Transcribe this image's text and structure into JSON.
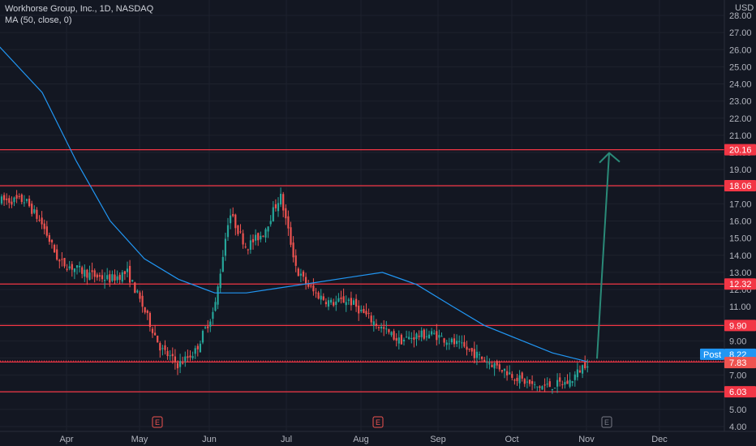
{
  "header": {
    "symbol_line": "Workhorse Group, Inc., 1D, NASDAQ",
    "indicator_line": "MA (50, close, 0)"
  },
  "currency": "USD",
  "colors": {
    "background": "#131722",
    "up": "#26a69a",
    "down": "#ef5350",
    "ma": "#2196f3",
    "level_line": "#f23645",
    "arrow": "#2a8a78",
    "grid": "#1e222d"
  },
  "chart_data": {
    "type": "candlestick",
    "y_axis": {
      "ticks": [
        "4.00",
        "5.00",
        "6.00",
        "7.00",
        "8.00",
        "9.00",
        "10.00",
        "11.00",
        "12.00",
        "13.00",
        "14.00",
        "15.00",
        "16.00",
        "17.00",
        "18.00",
        "19.00",
        "20.00",
        "21.00",
        "22.00",
        "23.00",
        "24.00",
        "25.00",
        "26.00",
        "27.00",
        "28.00"
      ],
      "range": [
        4,
        28
      ]
    },
    "x_axis": {
      "labels": [
        "Apr",
        "May",
        "Jun",
        "Jul",
        "Aug",
        "Sep",
        "Oct",
        "Nov",
        "Dec"
      ]
    },
    "earnings_markers": [
      "E",
      "E",
      "E"
    ],
    "horizontal_levels": [
      {
        "value": 20.16,
        "label": "20.16"
      },
      {
        "value": 18.06,
        "label": "18.06"
      },
      {
        "value": 12.32,
        "label": "12.32"
      },
      {
        "value": 9.9,
        "label": "9.90"
      },
      {
        "value": 7.77,
        "label": "7.77"
      },
      {
        "value": 6.03,
        "label": "6.03"
      }
    ],
    "price_tags": [
      {
        "name": "Post",
        "value": "8.22"
      },
      {
        "name": "",
        "value": "7.83"
      }
    ],
    "close_samples": [
      {
        "date": "2021-03-15",
        "close": 17.2
      },
      {
        "date": "2021-03-22",
        "close": 15.8
      },
      {
        "date": "2021-03-29",
        "close": 13.6
      },
      {
        "date": "2021-04-05",
        "close": 13.2
      },
      {
        "date": "2021-04-12",
        "close": 12.8
      },
      {
        "date": "2021-04-19",
        "close": 12.6
      },
      {
        "date": "2021-04-26",
        "close": 13.0
      },
      {
        "date": "2021-05-03",
        "close": 10.8
      },
      {
        "date": "2021-05-10",
        "close": 8.5
      },
      {
        "date": "2021-05-17",
        "close": 7.6
      },
      {
        "date": "2021-05-24",
        "close": 8.4
      },
      {
        "date": "2021-06-01",
        "close": 10.9
      },
      {
        "date": "2021-06-07",
        "close": 16.5
      },
      {
        "date": "2021-06-14",
        "close": 14.5
      },
      {
        "date": "2021-06-21",
        "close": 15.3
      },
      {
        "date": "2021-06-28",
        "close": 17.5
      },
      {
        "date": "2021-07-05",
        "close": 13.0
      },
      {
        "date": "2021-07-12",
        "close": 11.8
      },
      {
        "date": "2021-07-19",
        "close": 11.2
      },
      {
        "date": "2021-07-26",
        "close": 11.4
      },
      {
        "date": "2021-08-02",
        "close": 10.5
      },
      {
        "date": "2021-08-09",
        "close": 9.7
      },
      {
        "date": "2021-08-16",
        "close": 9.0
      },
      {
        "date": "2021-08-23",
        "close": 9.3
      },
      {
        "date": "2021-08-30",
        "close": 9.4
      },
      {
        "date": "2021-09-07",
        "close": 8.9
      },
      {
        "date": "2021-09-13",
        "close": 8.5
      },
      {
        "date": "2021-09-20",
        "close": 7.9
      },
      {
        "date": "2021-09-27",
        "close": 7.4
      },
      {
        "date": "2021-10-04",
        "close": 6.8
      },
      {
        "date": "2021-10-11",
        "close": 6.3
      },
      {
        "date": "2021-10-18",
        "close": 6.4
      },
      {
        "date": "2021-10-25",
        "close": 6.6
      },
      {
        "date": "2021-11-01",
        "close": 7.77
      }
    ],
    "ma_samples": [
      {
        "date": "2021-03-01",
        "value": 26.7
      },
      {
        "date": "2021-03-22",
        "value": 23.5
      },
      {
        "date": "2021-04-05",
        "value": 19.5
      },
      {
        "date": "2021-04-19",
        "value": 16.0
      },
      {
        "date": "2021-05-03",
        "value": 13.8
      },
      {
        "date": "2021-05-17",
        "value": 12.6
      },
      {
        "date": "2021-06-01",
        "value": 11.8
      },
      {
        "date": "2021-06-14",
        "value": 11.8
      },
      {
        "date": "2021-06-28",
        "value": 12.1
      },
      {
        "date": "2021-07-12",
        "value": 12.4
      },
      {
        "date": "2021-07-26",
        "value": 12.7
      },
      {
        "date": "2021-08-09",
        "value": 13.0
      },
      {
        "date": "2021-08-23",
        "value": 12.3
      },
      {
        "date": "2021-09-07",
        "value": 11.0
      },
      {
        "date": "2021-09-20",
        "value": 9.9
      },
      {
        "date": "2021-10-04",
        "value": 9.1
      },
      {
        "date": "2021-10-18",
        "value": 8.3
      },
      {
        "date": "2021-11-01",
        "value": 7.8
      }
    ],
    "projection_arrow": {
      "from": 7.77,
      "to": 20.16
    }
  }
}
